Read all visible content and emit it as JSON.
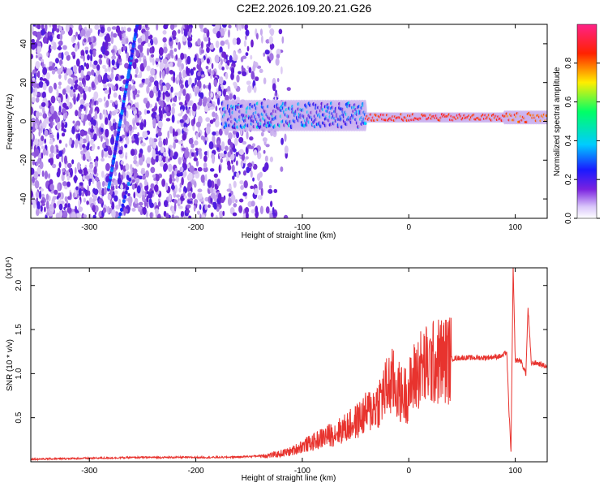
{
  "title": "C2E2.2026.109.20.21.G26",
  "colors": {
    "background": "#ffffff",
    "axis": "#000000",
    "snr_line": "#e8332e",
    "scatter_light": "#d4b8f5",
    "scatter_mid": "#9b5ce6",
    "scatter_dark": "#6a1fd1"
  },
  "chart_data": [
    {
      "type": "heatmap",
      "title": "C2E2.2026.109.20.21.G26",
      "xlabel": "Height of straight line (km)",
      "ylabel": "Frequency (Hz)",
      "xlim": [
        -355,
        130
      ],
      "ylim": [
        -50,
        50
      ],
      "x_ticks": [
        -300,
        -200,
        -100,
        0,
        100
      ],
      "x_tick_labels": [
        "-300",
        "-200",
        "-100",
        "0",
        "100"
      ],
      "y_ticks": [
        -40,
        -20,
        0,
        20,
        40
      ],
      "y_tick_labels": [
        "-40",
        "-20",
        "0",
        "20",
        "40"
      ],
      "colorbar": {
        "label": "Normalized spectral amplitude",
        "range": [
          0,
          1
        ],
        "ticks": [
          0.0,
          0.2,
          0.4,
          0.6,
          0.8
        ],
        "tick_labels": [
          "0.0",
          "0.2",
          "0.4",
          "0.6",
          "0.8"
        ],
        "colormap": [
          "#ffffff",
          "#6a1fd1",
          "#1a1aff",
          "#00ccff",
          "#00ff66",
          "#ffee00",
          "#ff2200",
          "#ff2288"
        ]
      },
      "features": {
        "noise_region_x": [
          -355,
          -140
        ],
        "diagonal_streak": [
          [
            -282,
            -35
          ],
          [
            -255,
            50
          ]
        ],
        "diagonal_streak_2": [
          [
            -272,
            -50
          ],
          [
            -262,
            -30
          ]
        ],
        "signal_band": [
          {
            "x_range": [
              -175,
              -40
            ],
            "center": 3,
            "half_width": 8,
            "amplitude": 0.35
          },
          {
            "x_range": [
              -40,
              90
            ],
            "center": 2,
            "half_width": 2,
            "amplitude": 0.9
          },
          {
            "x_range": [
              90,
              130
            ],
            "center": 2,
            "half_width": 3,
            "amplitude": 0.85
          }
        ]
      }
    },
    {
      "type": "line",
      "xlabel": "Height of straight line (km)",
      "ylabel": "SNR (10 * v/v)",
      "y_multiplier": "(x10⁴)",
      "xlim": [
        -355,
        130
      ],
      "ylim": [
        0,
        2.2
      ],
      "x_ticks": [
        -300,
        -200,
        -100,
        0,
        100
      ],
      "x_tick_labels": [
        "-300",
        "-200",
        "-100",
        "0",
        "100"
      ],
      "y_ticks": [
        0.5,
        1.0,
        1.5,
        2.0
      ],
      "y_tick_labels": [
        "0.5",
        "1.0",
        "1.5",
        "2.0"
      ],
      "series": [
        {
          "x": [
            -355,
            -300,
            -250,
            -200,
            -175,
            -150,
            -125,
            -110,
            -100,
            -90,
            -80,
            -70,
            -60,
            -50,
            -40,
            -30,
            -20,
            -15,
            -10,
            -5,
            0,
            5,
            10,
            20,
            30,
            40,
            50,
            60,
            70,
            80,
            88,
            92,
            94,
            96,
            98,
            100,
            105,
            110,
            112,
            115,
            120,
            125,
            130
          ],
          "y": [
            0.03,
            0.04,
            0.05,
            0.05,
            0.05,
            0.06,
            0.08,
            0.12,
            0.18,
            0.22,
            0.28,
            0.32,
            0.38,
            0.45,
            0.55,
            0.65,
            0.85,
            0.9,
            0.8,
            0.75,
            0.8,
            0.95,
            1.05,
            1.1,
            1.15,
            1.17,
            1.18,
            1.18,
            1.18,
            1.19,
            1.2,
            1.25,
            0.6,
            0.12,
            2.2,
            1.15,
            1.15,
            1.0,
            1.75,
            1.12,
            1.12,
            1.1,
            1.08
          ]
        }
      ]
    }
  ]
}
